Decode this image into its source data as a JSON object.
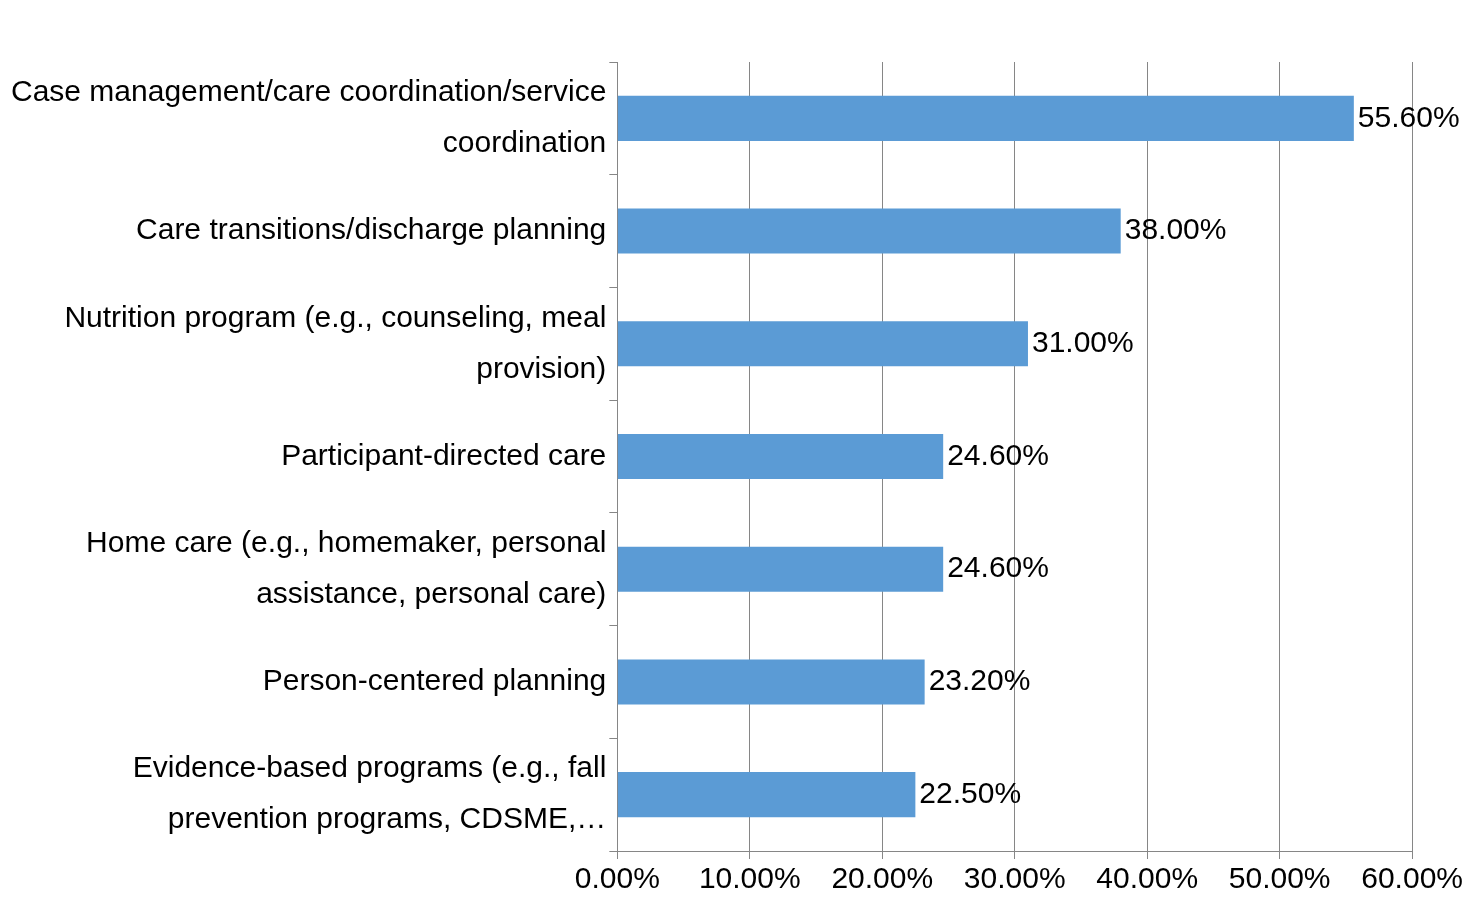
{
  "chart_data": {
    "type": "bar",
    "orientation": "horizontal",
    "categories": [
      "Case management/care coordination/service coordination",
      "Care transitions/discharge planning",
      "Nutrition program (e.g., counseling, meal provision)",
      "Participant-directed care",
      "Home care (e.g., homemaker, personal assistance, personal care)",
      "Person-centered planning",
      "Evidence-based programs (e.g., fall prevention programs, CDSME,…"
    ],
    "values": [
      55.6,
      38.0,
      31.0,
      24.6,
      24.6,
      23.2,
      22.5
    ],
    "value_labels": [
      "55.60%",
      "38.00%",
      "31.00%",
      "24.60%",
      "24.60%",
      "23.20%",
      "22.50%"
    ],
    "color": "#5b9bd5",
    "xlim": [
      0,
      60
    ],
    "xticks": [
      {
        "value": 0,
        "label": "0.00%"
      },
      {
        "value": 10,
        "label": "10.00%"
      },
      {
        "value": 20,
        "label": "20.00%"
      },
      {
        "value": 30,
        "label": "30.00%"
      },
      {
        "value": 40,
        "label": "40.00%"
      },
      {
        "value": 50,
        "label": "50.00%"
      },
      {
        "value": 60,
        "label": "60.00%"
      }
    ],
    "grid": "x",
    "legend": false
  }
}
